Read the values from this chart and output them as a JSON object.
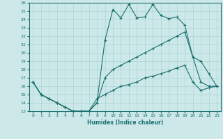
{
  "xlabel": "Humidex (Indice chaleur)",
  "bg_color": "#cde8e8",
  "line_color": "#1a7070",
  "grid_color": "#aad4d4",
  "x": [
    0,
    1,
    2,
    3,
    4,
    5,
    6,
    7,
    8,
    9,
    10,
    11,
    12,
    13,
    14,
    15,
    16,
    17,
    18,
    19,
    20,
    21,
    22,
    23
  ],
  "top_line": [
    16.5,
    15.0,
    14.5,
    14.0,
    13.5,
    13.0,
    13.0,
    13.0,
    14.0,
    21.5,
    25.2,
    24.2,
    25.8,
    24.2,
    24.3,
    25.8,
    24.5,
    24.1,
    24.3,
    23.3,
    19.5,
    19.0,
    17.5,
    16.0
  ],
  "mid_line": [
    16.5,
    15.0,
    14.5,
    14.0,
    13.5,
    13.0,
    13.0,
    13.0,
    14.0,
    17.0,
    18.0,
    18.5,
    19.0,
    19.5,
    20.0,
    20.5,
    21.0,
    21.5,
    22.0,
    22.5,
    19.5,
    16.5,
    16.0,
    16.0
  ],
  "bot_line": [
    16.5,
    15.0,
    14.5,
    14.0,
    13.5,
    13.0,
    13.0,
    13.0,
    14.5,
    15.0,
    15.5,
    16.0,
    16.2,
    16.5,
    17.0,
    17.2,
    17.5,
    17.8,
    18.2,
    18.5,
    16.5,
    15.5,
    15.8,
    16.0
  ],
  "ylim": [
    13,
    26
  ],
  "xlim": [
    -0.5,
    23.5
  ],
  "yticks": [
    13,
    14,
    15,
    16,
    17,
    18,
    19,
    20,
    21,
    22,
    23,
    24,
    25,
    26
  ],
  "xticks": [
    0,
    1,
    2,
    3,
    4,
    5,
    6,
    7,
    8,
    9,
    10,
    11,
    12,
    13,
    14,
    15,
    16,
    17,
    18,
    19,
    20,
    21,
    22,
    23
  ]
}
